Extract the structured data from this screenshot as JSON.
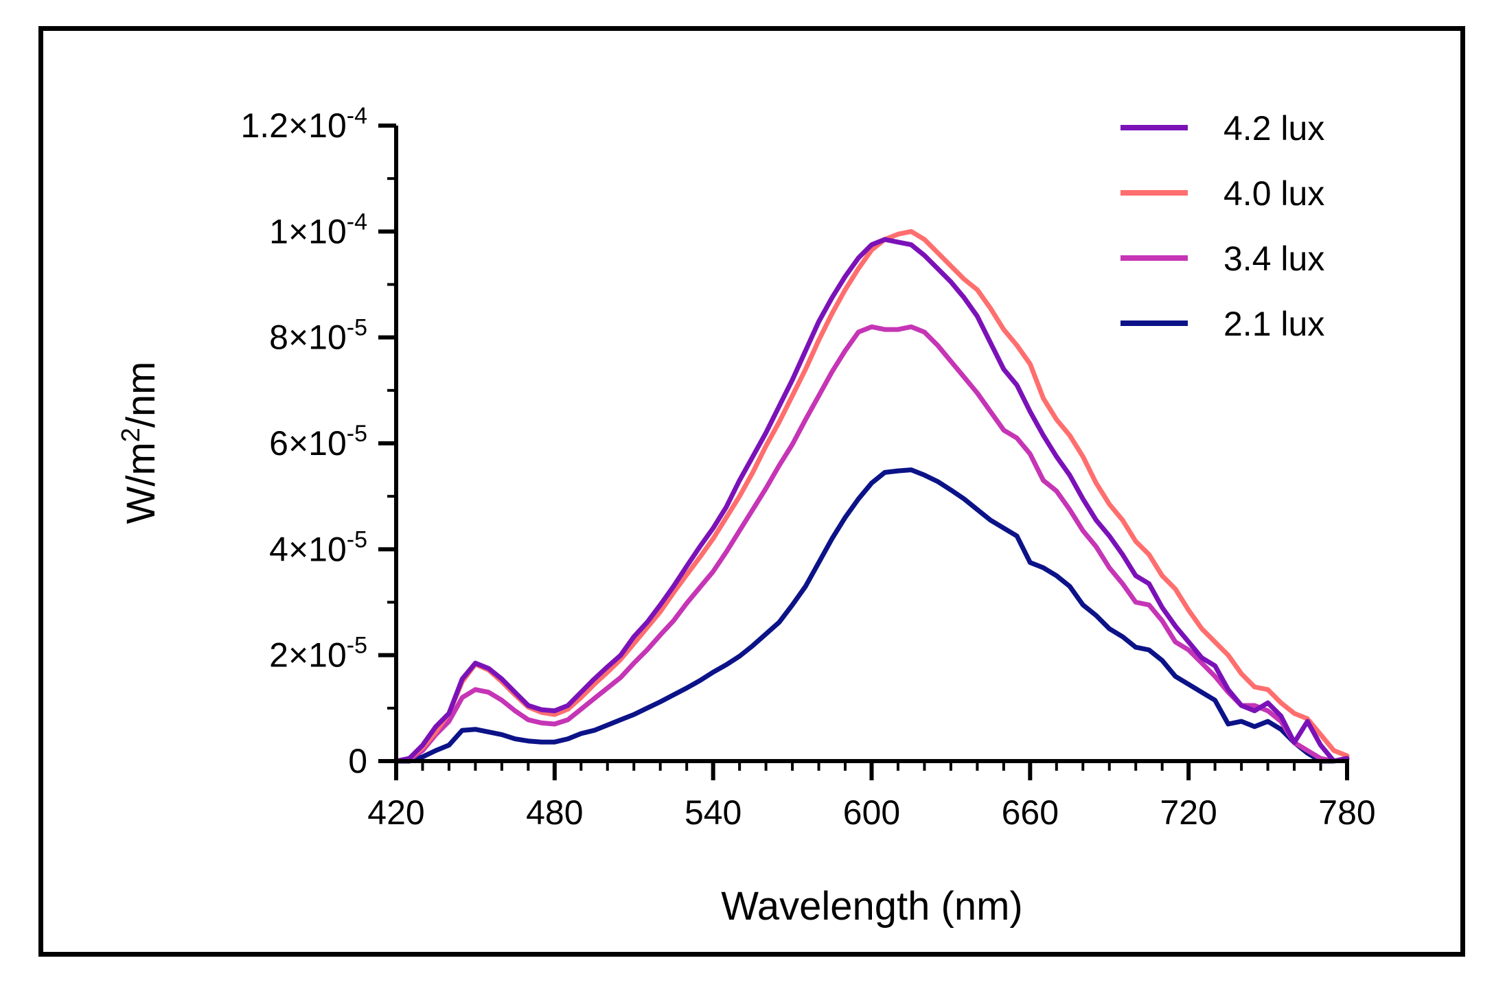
{
  "chart_data": {
    "type": "line",
    "title": "",
    "xlabel": "Wavelength (nm)",
    "ylabel": {
      "base": "W/m",
      "sup": "2",
      "rest": "/nm"
    },
    "xlim": [
      420,
      780
    ],
    "ylim": [
      0,
      0.00012
    ],
    "xticks": [
      420,
      480,
      540,
      600,
      660,
      720,
      780
    ],
    "x_tick_labels": [
      "420",
      "480",
      "540",
      "600",
      "660",
      "720",
      "780"
    ],
    "yticks": [
      0,
      2e-05,
      4e-05,
      6e-05,
      8e-05,
      0.0001,
      0.00012
    ],
    "y_tick_labels": [
      {
        "mant": "0",
        "exp": ""
      },
      {
        "mant": "2×10",
        "exp": "-5"
      },
      {
        "mant": "4×10",
        "exp": "-5"
      },
      {
        "mant": "6×10",
        "exp": "-5"
      },
      {
        "mant": "8×10",
        "exp": "-5"
      },
      {
        "mant": "1×10",
        "exp": "-4"
      },
      {
        "mant": "1.2×10",
        "exp": "-4"
      }
    ],
    "legend_position": "top-right",
    "x": [
      420,
      425,
      430,
      435,
      440,
      445,
      450,
      455,
      460,
      465,
      470,
      475,
      480,
      485,
      490,
      495,
      500,
      505,
      510,
      515,
      520,
      525,
      530,
      535,
      540,
      545,
      550,
      555,
      560,
      565,
      570,
      575,
      580,
      585,
      590,
      595,
      600,
      605,
      610,
      615,
      620,
      625,
      630,
      635,
      640,
      645,
      650,
      655,
      660,
      665,
      670,
      675,
      680,
      685,
      690,
      695,
      700,
      705,
      710,
      715,
      720,
      725,
      730,
      735,
      740,
      745,
      750,
      755,
      760,
      765,
      770,
      775,
      780
    ],
    "series": [
      {
        "name": "4.2 lux",
        "color": "#7b12b8",
        "values": [
          0,
          5e-07,
          3e-06,
          6.5e-06,
          9e-06,
          1.55e-05,
          1.85e-05,
          1.75e-05,
          1.55e-05,
          1.3e-05,
          1.05e-05,
          9.7e-06,
          9.5e-06,
          1.05e-05,
          1.3e-05,
          1.55e-05,
          1.78e-05,
          2e-05,
          2.35e-05,
          2.62e-05,
          2.95e-05,
          3.3e-05,
          3.68e-05,
          4.05e-05,
          4.4e-05,
          4.8e-05,
          5.3e-05,
          5.75e-05,
          6.2e-05,
          6.7e-05,
          7.2e-05,
          7.75e-05,
          8.3e-05,
          8.75e-05,
          9.15e-05,
          9.5e-05,
          9.75e-05,
          9.85e-05,
          9.8e-05,
          9.75e-05,
          9.55e-05,
          9.3e-05,
          9.05e-05,
          8.75e-05,
          8.4e-05,
          7.9e-05,
          7.4e-05,
          7.1e-05,
          6.6e-05,
          6.15e-05,
          5.75e-05,
          5.4e-05,
          4.95e-05,
          4.55e-05,
          4.25e-05,
          3.9e-05,
          3.5e-05,
          3.35e-05,
          2.9e-05,
          2.55e-05,
          2.25e-05,
          1.95e-05,
          1.8e-05,
          1.35e-05,
          1.05e-05,
          9.5e-06,
          1.1e-05,
          8.5e-06,
          3.5e-06,
          7.5e-06,
          3e-06,
          0,
          5e-07
        ]
      },
      {
        "name": "4.0 lux",
        "color": "#ff6e6e",
        "values": [
          0,
          5e-07,
          2.5e-06,
          5.5e-06,
          9e-06,
          1.5e-05,
          1.83e-05,
          1.72e-05,
          1.5e-05,
          1.25e-05,
          1.02e-05,
          9.2e-06,
          8.8e-06,
          9.8e-06,
          1.2e-05,
          1.45e-05,
          1.68e-05,
          1.92e-05,
          2.22e-05,
          2.52e-05,
          2.82e-05,
          3.18e-05,
          3.52e-05,
          3.85e-05,
          4.2e-05,
          4.6e-05,
          5e-05,
          5.45e-05,
          5.95e-05,
          6.4e-05,
          6.9e-05,
          7.4e-05,
          7.95e-05,
          8.45e-05,
          8.9e-05,
          9.3e-05,
          9.65e-05,
          9.85e-05,
          9.95e-05,
          0.0001,
          9.85e-05,
          9.6e-05,
          9.35e-05,
          9.1e-05,
          8.9e-05,
          8.55e-05,
          8.15e-05,
          7.85e-05,
          7.5e-05,
          6.85e-05,
          6.45e-05,
          6.15e-05,
          5.75e-05,
          5.25e-05,
          4.85e-05,
          4.55e-05,
          4.15e-05,
          3.9e-05,
          3.5e-05,
          3.25e-05,
          2.85e-05,
          2.5e-05,
          2.25e-05,
          2e-05,
          1.65e-05,
          1.4e-05,
          1.35e-05,
          1.1e-05,
          9e-06,
          8e-06,
          5e-06,
          2e-06,
          1e-06
        ]
      },
      {
        "name": "3.4 lux",
        "color": "#c535b5",
        "values": [
          0,
          3e-07,
          2e-06,
          5e-06,
          7.5e-06,
          1.2e-05,
          1.35e-05,
          1.3e-05,
          1.15e-05,
          9.5e-06,
          7.8e-06,
          7.2e-06,
          7e-06,
          7.8e-06,
          9.8e-06,
          1.18e-05,
          1.38e-05,
          1.58e-05,
          1.85e-05,
          2.1e-05,
          2.38e-05,
          2.65e-05,
          2.98e-05,
          3.28e-05,
          3.58e-05,
          3.95e-05,
          4.35e-05,
          4.75e-05,
          5.15e-05,
          5.58e-05,
          5.98e-05,
          6.45e-05,
          6.9e-05,
          7.35e-05,
          7.75e-05,
          8.1e-05,
          8.2e-05,
          8.15e-05,
          8.15e-05,
          8.2e-05,
          8.1e-05,
          7.85e-05,
          7.55e-05,
          7.25e-05,
          6.95e-05,
          6.6e-05,
          6.25e-05,
          6.1e-05,
          5.8e-05,
          5.3e-05,
          5.1e-05,
          4.75e-05,
          4.35e-05,
          4.05e-05,
          3.65e-05,
          3.35e-05,
          3e-05,
          2.95e-05,
          2.65e-05,
          2.25e-05,
          2.1e-05,
          1.85e-05,
          1.6e-05,
          1.3e-05,
          1.05e-05,
          1.05e-05,
          9.5e-06,
          7.5e-06,
          3.5e-06,
          2e-06,
          5e-07,
          0,
          5e-07
        ]
      },
      {
        "name": "2.1 lux",
        "color": "#0c1287",
        "values": [
          0,
          0,
          8e-07,
          2e-06,
          3e-06,
          5.8e-06,
          6e-06,
          5.5e-06,
          5e-06,
          4.2e-06,
          3.8e-06,
          3.6e-06,
          3.6e-06,
          4.2e-06,
          5.2e-06,
          5.8e-06,
          6.8e-06,
          7.8e-06,
          8.8e-06,
          1e-05,
          1.12e-05,
          1.25e-05,
          1.38e-05,
          1.52e-05,
          1.68e-05,
          1.82e-05,
          1.98e-05,
          2.18e-05,
          2.4e-05,
          2.62e-05,
          2.95e-05,
          3.3e-05,
          3.75e-05,
          4.2e-05,
          4.6e-05,
          4.95e-05,
          5.25e-05,
          5.45e-05,
          5.48e-05,
          5.5e-05,
          5.4e-05,
          5.28e-05,
          5.12e-05,
          4.95e-05,
          4.75e-05,
          4.55e-05,
          4.4e-05,
          4.25e-05,
          3.75e-05,
          3.65e-05,
          3.5e-05,
          3.3e-05,
          2.95e-05,
          2.75e-05,
          2.5e-05,
          2.35e-05,
          2.15e-05,
          2.1e-05,
          1.9e-05,
          1.6e-05,
          1.45e-05,
          1.3e-05,
          1.15e-05,
          7e-06,
          7.5e-06,
          6.5e-06,
          7.5e-06,
          6e-06,
          3.5e-06,
          1.5e-06,
          0,
          0,
          5e-07
        ]
      }
    ]
  }
}
